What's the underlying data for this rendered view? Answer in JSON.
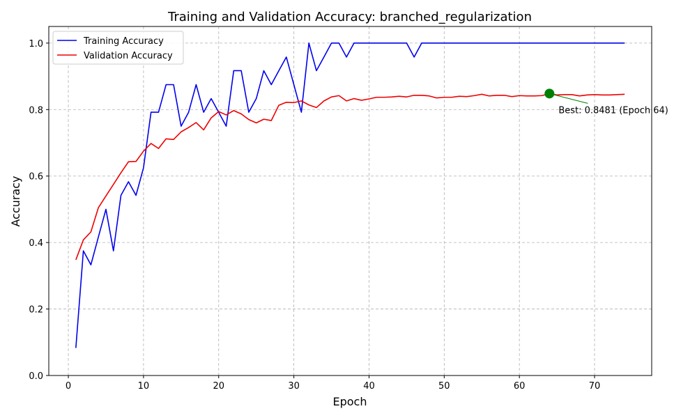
{
  "chart_data": {
    "type": "line",
    "title": "Training and Validation Accuracy: branched_regularization",
    "xlabel": "Epoch",
    "ylabel": "Accuracy",
    "xlim": [
      -2.6,
      77.6
    ],
    "ylim": [
      0.0,
      1.05
    ],
    "xticks": [
      0,
      10,
      20,
      30,
      40,
      50,
      60,
      70
    ],
    "yticks": [
      0.0,
      0.2,
      0.4,
      0.6,
      0.8,
      1.0
    ],
    "grid": true,
    "legend_position": "top-left",
    "x": [
      1,
      2,
      3,
      4,
      5,
      6,
      7,
      8,
      9,
      10,
      11,
      12,
      13,
      14,
      15,
      16,
      17,
      18,
      19,
      20,
      21,
      22,
      23,
      24,
      25,
      26,
      27,
      28,
      29,
      30,
      31,
      32,
      33,
      34,
      35,
      36,
      37,
      38,
      39,
      40,
      41,
      42,
      43,
      44,
      45,
      46,
      47,
      48,
      49,
      50,
      51,
      52,
      53,
      54,
      55,
      56,
      57,
      58,
      59,
      60,
      61,
      62,
      63,
      64,
      65,
      66,
      67,
      68,
      69,
      70,
      71,
      72,
      73,
      74
    ],
    "series": [
      {
        "name": "Training Accuracy",
        "color": "#0000ee",
        "values": [
          0.083,
          0.375,
          0.333,
          0.417,
          0.5,
          0.375,
          0.542,
          0.583,
          0.542,
          0.625,
          0.792,
          0.792,
          0.875,
          0.875,
          0.75,
          0.792,
          0.875,
          0.792,
          0.833,
          0.792,
          0.75,
          0.917,
          0.917,
          0.792,
          0.833,
          0.917,
          0.875,
          0.917,
          0.958,
          0.875,
          0.792,
          1.0,
          0.917,
          0.958,
          1.0,
          1.0,
          0.958,
          1.0,
          1.0,
          1.0,
          1.0,
          1.0,
          1.0,
          1.0,
          1.0,
          0.958,
          1.0,
          1.0,
          1.0,
          1.0,
          1.0,
          1.0,
          1.0,
          1.0,
          1.0,
          1.0,
          1.0,
          1.0,
          1.0,
          1.0,
          1.0,
          1.0,
          1.0,
          1.0,
          1.0,
          1.0,
          1.0,
          1.0,
          1.0,
          1.0,
          1.0,
          1.0,
          1.0,
          1.0
        ]
      },
      {
        "name": "Validation Accuracy",
        "color": "#ee0000",
        "values": [
          0.348,
          0.408,
          0.432,
          0.505,
          0.54,
          0.575,
          0.61,
          0.643,
          0.644,
          0.675,
          0.698,
          0.683,
          0.712,
          0.71,
          0.733,
          0.746,
          0.761,
          0.739,
          0.775,
          0.794,
          0.784,
          0.797,
          0.787,
          0.77,
          0.76,
          0.771,
          0.767,
          0.813,
          0.822,
          0.821,
          0.826,
          0.814,
          0.806,
          0.826,
          0.838,
          0.842,
          0.826,
          0.833,
          0.828,
          0.832,
          0.837,
          0.837,
          0.838,
          0.84,
          0.838,
          0.843,
          0.843,
          0.841,
          0.835,
          0.837,
          0.837,
          0.84,
          0.839,
          0.842,
          0.846,
          0.841,
          0.843,
          0.843,
          0.839,
          0.842,
          0.841,
          0.841,
          0.842,
          0.8481,
          0.844,
          0.845,
          0.845,
          0.841,
          0.844,
          0.845,
          0.844,
          0.844,
          0.845,
          0.846
        ]
      }
    ],
    "annotation": {
      "text": "Best: 0.8481 (Epoch 64)",
      "x": 64,
      "y": 0.8481,
      "color": "#008000"
    }
  }
}
